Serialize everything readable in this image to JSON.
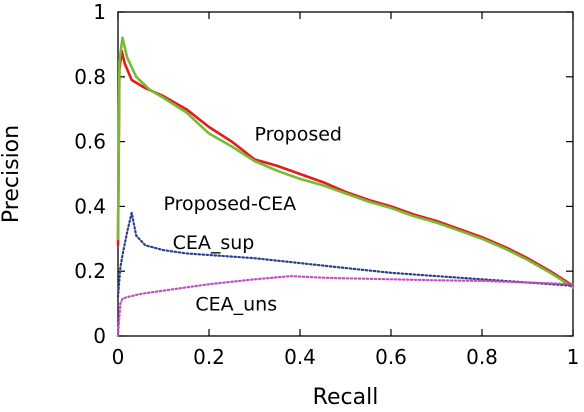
{
  "chart_data": {
    "type": "line",
    "xlabel": "Recall",
    "ylabel": "Precision",
    "xlim": [
      0,
      1
    ],
    "ylim": [
      0,
      1
    ],
    "xticks": [
      0,
      0.2,
      0.4,
      0.6,
      0.8,
      1
    ],
    "yticks": [
      0,
      0.2,
      0.4,
      0.6,
      0.8,
      1
    ],
    "xtick_labels": [
      "0",
      "0.2",
      "0.4",
      "0.6",
      "0.8",
      "1"
    ],
    "ytick_labels": [
      "0",
      "0.2",
      "0.4",
      "0.6",
      "0.8",
      "1"
    ],
    "grid": false,
    "legend": "none",
    "series": [
      {
        "name": "Proposed",
        "color": "#e41a1c",
        "dash": "solid",
        "x": [
          0,
          0.003,
          0.008,
          0.015,
          0.03,
          0.06,
          0.1,
          0.15,
          0.2,
          0.25,
          0.3,
          0.35,
          0.4,
          0.45,
          0.5,
          0.55,
          0.6,
          0.65,
          0.7,
          0.75,
          0.8,
          0.85,
          0.9,
          0.95,
          1.0
        ],
        "y": [
          0.28,
          0.82,
          0.88,
          0.84,
          0.79,
          0.765,
          0.74,
          0.7,
          0.645,
          0.6,
          0.545,
          0.525,
          0.5,
          0.475,
          0.445,
          0.42,
          0.4,
          0.375,
          0.355,
          0.33,
          0.305,
          0.275,
          0.24,
          0.2,
          0.155
        ]
      },
      {
        "name": "Proposed-CEA",
        "color": "#77bb33",
        "dash": "solid",
        "x": [
          0,
          0.003,
          0.01,
          0.02,
          0.04,
          0.07,
          0.1,
          0.15,
          0.2,
          0.25,
          0.3,
          0.35,
          0.4,
          0.45,
          0.5,
          0.55,
          0.6,
          0.65,
          0.7,
          0.75,
          0.8,
          0.85,
          0.9,
          0.95,
          1.0
        ],
        "y": [
          0.3,
          0.85,
          0.92,
          0.86,
          0.8,
          0.76,
          0.735,
          0.69,
          0.625,
          0.585,
          0.54,
          0.51,
          0.485,
          0.465,
          0.44,
          0.415,
          0.395,
          0.37,
          0.35,
          0.325,
          0.3,
          0.27,
          0.235,
          0.195,
          0.15
        ]
      },
      {
        "name": "CEA_sup",
        "color": "#2b3f8c",
        "dash": "dotted",
        "x": [
          0,
          0.005,
          0.01,
          0.02,
          0.03,
          0.04,
          0.06,
          0.1,
          0.15,
          0.2,
          0.3,
          0.4,
          0.5,
          0.6,
          0.7,
          0.8,
          0.9,
          1.0
        ],
        "y": [
          0.12,
          0.21,
          0.25,
          0.32,
          0.38,
          0.31,
          0.28,
          0.265,
          0.255,
          0.25,
          0.24,
          0.225,
          0.21,
          0.195,
          0.185,
          0.175,
          0.165,
          0.155
        ]
      },
      {
        "name": "CEA_uns",
        "color": "#c050c0",
        "dash": "dotted",
        "x": [
          0,
          0.005,
          0.01,
          0.02,
          0.05,
          0.1,
          0.15,
          0.2,
          0.3,
          0.38,
          0.45,
          0.5,
          0.6,
          0.7,
          0.8,
          0.9,
          1.0
        ],
        "y": [
          0.0,
          0.1,
          0.115,
          0.12,
          0.13,
          0.14,
          0.15,
          0.16,
          0.175,
          0.185,
          0.18,
          0.178,
          0.175,
          0.172,
          0.17,
          0.165,
          0.16
        ]
      }
    ],
    "annotations": [
      {
        "text": "Proposed",
        "x": 0.3,
        "y": 0.625
      },
      {
        "text": "Proposed-CEA",
        "x": 0.1,
        "y": 0.41
      },
      {
        "text": "CEA_sup",
        "x": 0.12,
        "y": 0.29
      },
      {
        "text": "CEA_uns",
        "x": 0.17,
        "y": 0.1
      }
    ]
  }
}
